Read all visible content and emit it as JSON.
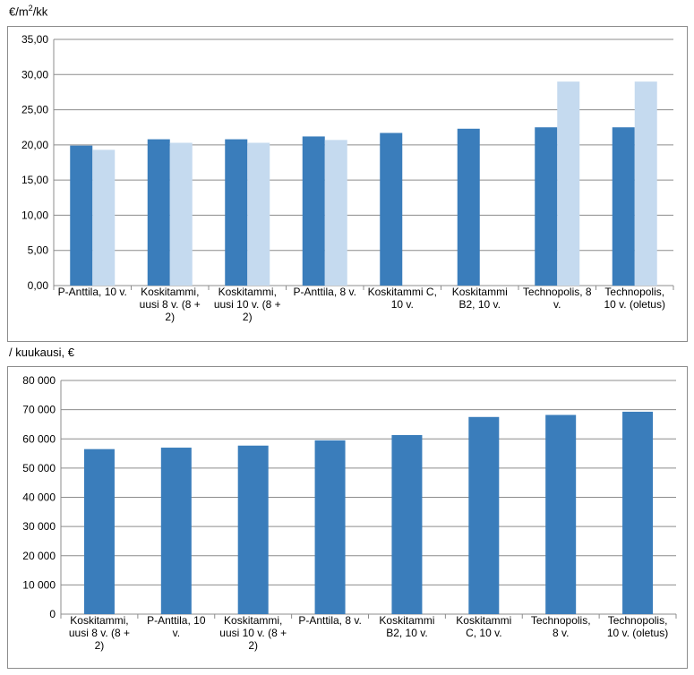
{
  "chart_data": [
    {
      "type": "bar",
      "unit_label": "€/m²/kk",
      "categories": [
        "P-Anttila, 10 v.",
        "Koskitammi, uusi 8 v. (8 + 2)",
        "Koskitammi, uusi 10 v. (8 + 2)",
        "P-Anttila, 8 v.",
        "Koskitammi C, 10 v.",
        "Koskitammi B2, 10 v.",
        "Technopolis, 8 v.",
        "Technopolis, 10 v. (oletus)"
      ],
      "category_lines": [
        [
          "P-Anttila, 10 v."
        ],
        [
          "Koskitammi,",
          "uusi 8 v. (8 +",
          "2)"
        ],
        [
          "Koskitammi,",
          "uusi 10 v. (8 +",
          "2)"
        ],
        [
          "P-Anttila, 8 v."
        ],
        [
          "Koskitammi C,",
          "10 v."
        ],
        [
          "Koskitammi",
          "B2, 10 v."
        ],
        [
          "Technopolis, 8",
          "v."
        ],
        [
          "Technopolis,",
          "10 v. (oletus)"
        ]
      ],
      "series": [
        {
          "values": [
            19.9,
            20.8,
            20.8,
            21.2,
            21.7,
            22.3,
            22.5,
            22.5
          ],
          "color": "#3a7dbb"
        },
        {
          "values": [
            19.3,
            20.3,
            20.3,
            20.7,
            null,
            null,
            29.0,
            29.0
          ],
          "color": "#c5daef"
        }
      ],
      "yticks": [
        "0,00",
        "5,00",
        "10,00",
        "15,00",
        "20,00",
        "25,00",
        "30,00",
        "35,00"
      ],
      "ylim": [
        0,
        35
      ],
      "grid": true,
      "legend": "none"
    },
    {
      "type": "bar",
      "unit_label": "/ kuukausi, €",
      "categories": [
        "Koskitammi, uusi 8 v. (8 + 2)",
        "P-Anttila, 10 v.",
        "Koskitammi, uusi 10 v. (8 + 2)",
        "P-Anttila, 8 v.",
        "Koskitammi B2, 10 v.",
        "Koskitammi C, 10 v.",
        "Technopolis, 8 v.",
        "Technopolis, 10 v. (oletus)"
      ],
      "category_lines": [
        [
          "Koskitammi,",
          "uusi 8 v. (8 +",
          "2)"
        ],
        [
          "P-Anttila, 10",
          "v."
        ],
        [
          "Koskitammi,",
          "uusi 10 v. (8 +",
          "2)"
        ],
        [
          "P-Anttila, 8 v."
        ],
        [
          "Koskitammi",
          "B2, 10 v."
        ],
        [
          "Koskitammi",
          "C, 10 v."
        ],
        [
          "Technopolis,",
          "8 v."
        ],
        [
          "Technopolis,",
          "10 v. (oletus)"
        ]
      ],
      "series": [
        {
          "values": [
            56500,
            57000,
            57700,
            59500,
            61300,
            67500,
            68200,
            69300
          ],
          "color": "#3a7dbb"
        }
      ],
      "yticks": [
        "0",
        "10 000",
        "20 000",
        "30 000",
        "40 000",
        "50 000",
        "60 000",
        "70 000",
        "80 000"
      ],
      "ylim": [
        0,
        80000
      ],
      "grid": true,
      "legend": "none"
    }
  ]
}
